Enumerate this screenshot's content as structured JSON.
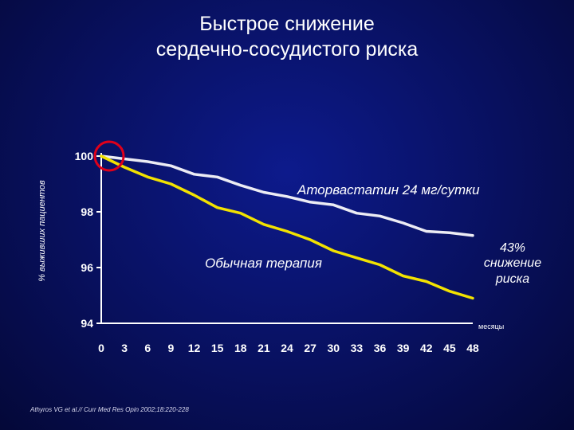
{
  "title_line1": "Быстрое снижение",
  "title_line2": "сердечно-сосудистого риска",
  "source": "Athyros VG et al.// Curr Med Res Opin 2002;18:220-228",
  "colors": {
    "atorvastatin": "#ececf4",
    "usual": "#f2e200",
    "axis": "#ffffff",
    "highlight_circle": "#e0001a"
  },
  "chart_data": {
    "type": "line",
    "xlabel": "месяцы",
    "ylabel": "% выживших пациентов",
    "x_ticks": [
      0,
      3,
      6,
      9,
      12,
      15,
      18,
      21,
      24,
      27,
      30,
      33,
      36,
      39,
      42,
      45,
      48
    ],
    "y_ticks": [
      94,
      96,
      98,
      100
    ],
    "xlim": [
      0,
      48
    ],
    "ylim": [
      94,
      100
    ],
    "grid": false,
    "x": [
      0,
      3,
      6,
      9,
      12,
      15,
      18,
      21,
      24,
      27,
      30,
      33,
      36,
      39,
      42,
      45,
      48
    ],
    "series": [
      {
        "name": "Аторвастатин 24 мг/сутки",
        "values": [
          100.0,
          99.9,
          99.8,
          99.65,
          99.35,
          99.25,
          98.95,
          98.7,
          98.55,
          98.35,
          98.25,
          97.95,
          97.85,
          97.6,
          97.3,
          97.25,
          97.15
        ]
      },
      {
        "name": "Обычная терапия",
        "values": [
          100.0,
          99.6,
          99.25,
          99.0,
          98.6,
          98.15,
          97.95,
          97.55,
          97.3,
          97.0,
          96.6,
          96.35,
          96.1,
          95.7,
          95.5,
          95.15,
          94.9
        ]
      }
    ],
    "annotations": {
      "atorvastatin_label": "Аторвастатин 24 мг/сутки",
      "usual_label": "Обычная терапия",
      "reduction_line1": "43%",
      "reduction_line2": "снижение",
      "reduction_line3": "риска"
    }
  }
}
